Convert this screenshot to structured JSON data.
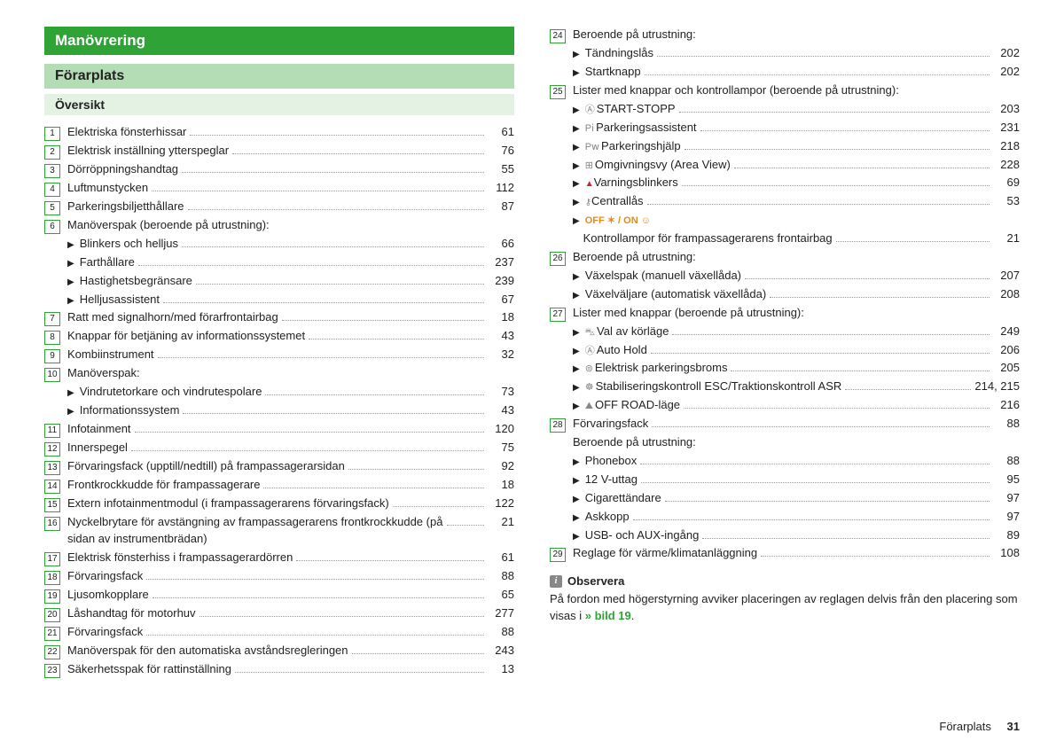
{
  "headings": {
    "main": "Manövrering",
    "sub": "Förarplats",
    "section": "Översikt"
  },
  "left": [
    {
      "n": "1",
      "t": "Elektriska fönsterhissar",
      "p": "61"
    },
    {
      "n": "2",
      "t": "Elektrisk inställning ytterspeglar",
      "p": "76"
    },
    {
      "n": "3",
      "t": "Dörröppningshandtag",
      "p": "55"
    },
    {
      "n": "4",
      "t": "Luftmunstycken",
      "p": "112"
    },
    {
      "n": "5",
      "t": "Parkeringsbiljetthållare",
      "p": "87"
    },
    {
      "n": "6",
      "t": "Manöverspak (beroende på utrustning):",
      "p": "",
      "noleader": true
    },
    {
      "sub": true,
      "t": "Blinkers och helljus",
      "p": "66"
    },
    {
      "sub": true,
      "t": "Farthållare",
      "p": "237"
    },
    {
      "sub": true,
      "t": "Hastighetsbegränsare",
      "p": "239"
    },
    {
      "sub": true,
      "t": "Helljusassistent",
      "p": "67"
    },
    {
      "n": "7",
      "t": "Ratt med signalhorn/med förarfrontairbag",
      "p": "18"
    },
    {
      "n": "8",
      "t": "Knappar för betjäning av informationssystemet",
      "p": "43"
    },
    {
      "n": "9",
      "t": "Kombiinstrument",
      "p": "32"
    },
    {
      "n": "10",
      "t": "Manöverspak:",
      "p": "",
      "noleader": true
    },
    {
      "sub": true,
      "t": "Vindrutetorkare och vindrutespolare",
      "p": "73"
    },
    {
      "sub": true,
      "t": "Informationssystem",
      "p": "43"
    },
    {
      "n": "11",
      "t": "Infotainment",
      "p": "120"
    },
    {
      "n": "12",
      "t": "Innerspegel",
      "p": "75"
    },
    {
      "n": "13",
      "t": "Förvaringsfack (upptill/nedtill) på frampassagerarsidan",
      "p": "92"
    },
    {
      "n": "14",
      "t": "Frontkrockkudde för frampassagerare",
      "p": "18"
    },
    {
      "n": "15",
      "t": "Extern infotainmentmodul (i frampassagerarens förvaringsfack)",
      "p": "122"
    },
    {
      "n": "16",
      "t": "Nyckelbrytare för avstängning av frampassagerarens frontkrock­kudde (på sidan av instrumentbrädan)",
      "p": "21"
    },
    {
      "n": "17",
      "t": "Elektrisk fönsterhiss i frampassagerardörren",
      "p": "61"
    },
    {
      "n": "18",
      "t": "Förvaringsfack",
      "p": "88"
    },
    {
      "n": "19",
      "t": "Ljusomkopplare",
      "p": "65"
    },
    {
      "n": "20",
      "t": "Låshandtag för motorhuv",
      "p": "277"
    },
    {
      "n": "21",
      "t": "Förvaringsfack",
      "p": "88"
    },
    {
      "n": "22",
      "t": "Manöverspak för den automatiska avståndsregleringen",
      "p": "243"
    },
    {
      "n": "23",
      "t": "Säkerhetsspak för rattinställning",
      "p": "13"
    }
  ],
  "right": [
    {
      "n": "24",
      "t": "Beroende på utrustning:",
      "p": "",
      "noleader": true
    },
    {
      "sub": true,
      "t": "Tändningslås",
      "p": "202"
    },
    {
      "sub": true,
      "t": "Startknapp",
      "p": "202"
    },
    {
      "n": "25",
      "t": "Lister med knappar och kontrollampor (beroende på utrustning):",
      "p": "",
      "noleader": true
    },
    {
      "sub": true,
      "icon": "startstop",
      "t": "START-STOPP",
      "p": "203"
    },
    {
      "sub": true,
      "icon": "pia",
      "t": "Parkeringsassistent",
      "p": "231"
    },
    {
      "sub": true,
      "icon": "pwi",
      "t": "Parkeringshjälp",
      "p": "218"
    },
    {
      "sub": true,
      "icon": "area",
      "t": "Omgivningsvy (Area View)",
      "p": "228"
    },
    {
      "sub": true,
      "icon": "warn",
      "t": "Varningsblinkers",
      "p": "69"
    },
    {
      "sub": true,
      "icon": "lock",
      "t": "Centrallås",
      "p": "53"
    },
    {
      "sub": true,
      "icon": "offon",
      "t": "",
      "p": "",
      "noleader": true
    },
    {
      "sub": true,
      "noarrow": true,
      "t": "Kontrollampor för frampassagerarens frontairbag",
      "p": "21"
    },
    {
      "n": "26",
      "t": "Beroende på utrustning:",
      "p": "",
      "noleader": true
    },
    {
      "sub": true,
      "t": "Växelspak (manuell växellåda)",
      "p": "207"
    },
    {
      "sub": true,
      "t": "Växelväljare (automatisk växellåda)",
      "p": "208"
    },
    {
      "n": "27",
      "t": "Lister med knappar (beroende på utrustning):",
      "p": "",
      "noleader": true
    },
    {
      "sub": true,
      "icon": "mode",
      "t": "Val av körläge",
      "p": "249"
    },
    {
      "sub": true,
      "icon": "auto",
      "t": "Auto Hold",
      "p": "206"
    },
    {
      "sub": true,
      "icon": "epb",
      "t": "Elektrisk parkeringsbroms",
      "p": "205"
    },
    {
      "sub": true,
      "icon": "esc",
      "t": "Stabiliseringskontroll ESC/Traktionskontroll ASR",
      "p": "214, 215"
    },
    {
      "sub": true,
      "icon": "offroad",
      "t": "OFF ROAD-läge",
      "p": "216"
    },
    {
      "n": "28",
      "t": "Förvaringsfack",
      "p": "88"
    },
    {
      "nolabelnum": true,
      "t": "Beroende på utrustning:",
      "p": "",
      "noleader": true
    },
    {
      "sub": true,
      "t": "Phonebox",
      "p": "88"
    },
    {
      "sub": true,
      "t": "12 V-uttag",
      "p": "95"
    },
    {
      "sub": true,
      "t": "Cigarettändare",
      "p": "97"
    },
    {
      "sub": true,
      "t": "Askkopp",
      "p": "97"
    },
    {
      "sub": true,
      "t": "USB- och AUX-ingång",
      "p": "89"
    },
    {
      "n": "29",
      "t": "Reglage för värme/klimatanläggning",
      "p": "108"
    }
  ],
  "note": {
    "title": "Observera",
    "body_pre": "På fordon med högerstyrning avviker placeringen av reglagen delvis från den placering som visas i ",
    "link": "» bild 19",
    "body_post": "."
  },
  "footer": {
    "label": "Förarplats",
    "page": "31"
  }
}
